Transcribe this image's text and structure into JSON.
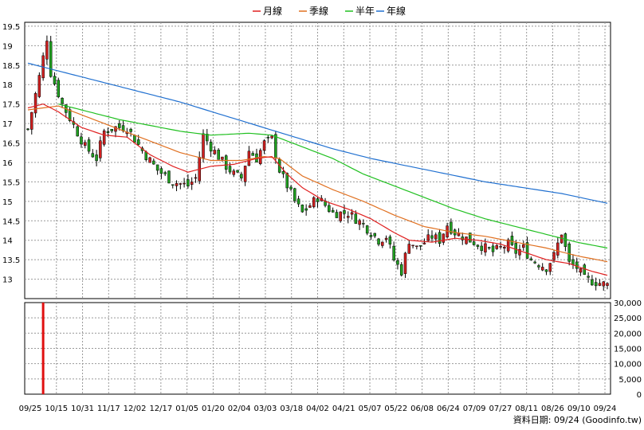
{
  "chart_data": {
    "type": "candlestick",
    "title": "",
    "legend": {
      "placement": "top-center",
      "items": [
        {
          "name": "月線",
          "color": "#e02020"
        },
        {
          "name": "季線",
          "color": "#e07020"
        },
        {
          "name": "半年",
          "color": "#20c020"
        },
        {
          "name": "年線",
          "color": "#2070d0"
        }
      ]
    },
    "x_tick_labels": [
      "09/25",
      "10/15",
      "10/31",
      "11/17",
      "12/02",
      "12/17",
      "01/05",
      "01/20",
      "02/04",
      "03/03",
      "03/18",
      "04/02",
      "04/21",
      "05/07",
      "05/22",
      "06/08",
      "06/24",
      "07/09",
      "07/27",
      "08/11",
      "08/26",
      "09/10",
      "09/24"
    ],
    "price_axis": {
      "ylim": [
        12.5,
        19.6
      ],
      "tick_labels": [
        "19.5",
        "19",
        "18.5",
        "18",
        "17.5",
        "17",
        "16.5",
        "16",
        "15.5",
        "15",
        "14.5",
        "14",
        "13.5",
        "13"
      ],
      "tick_values": [
        19.5,
        19,
        18.5,
        18,
        17.5,
        17,
        16.5,
        16,
        15.5,
        15,
        14.5,
        14,
        13.5,
        13
      ]
    },
    "volume_axis": {
      "ylim": [
        0,
        30000
      ],
      "tick_labels": [
        "30,000",
        "25,000",
        "20,000",
        "15,000",
        "10,000",
        "5,000",
        "0"
      ],
      "tick_values": [
        30000,
        25000,
        20000,
        15000,
        10000,
        5000,
        0
      ]
    },
    "grid": true,
    "anchors": {
      "close": [
        [
          0,
          16.85
        ],
        [
          3,
          18.2
        ],
        [
          5,
          19.2
        ],
        [
          6,
          18.3
        ],
        [
          9,
          17.5
        ],
        [
          12,
          16.95
        ],
        [
          15,
          16.4
        ],
        [
          18,
          16.1
        ],
        [
          20,
          16.8
        ],
        [
          23,
          16.9
        ],
        [
          26,
          16.9
        ],
        [
          30,
          16.3
        ],
        [
          34,
          15.8
        ],
        [
          38,
          15.5
        ],
        [
          42,
          15.4
        ],
        [
          44,
          15.6
        ],
        [
          46,
          16.7
        ],
        [
          48,
          16.4
        ],
        [
          52,
          15.9
        ],
        [
          54,
          15.7
        ],
        [
          56,
          15.6
        ],
        [
          58,
          16.3
        ],
        [
          60,
          16.1
        ],
        [
          62,
          16.5
        ],
        [
          64,
          16.6
        ],
        [
          66,
          15.8
        ],
        [
          70,
          15.0
        ],
        [
          72,
          14.7
        ],
        [
          74,
          14.9
        ],
        [
          76,
          15.1
        ],
        [
          80,
          14.7
        ],
        [
          84,
          14.7
        ],
        [
          88,
          14.4
        ],
        [
          92,
          14.0
        ],
        [
          94,
          14.1
        ],
        [
          96,
          13.5
        ],
        [
          98,
          13.2
        ],
        [
          100,
          14.0
        ],
        [
          102,
          13.8
        ],
        [
          106,
          14.1
        ],
        [
          108,
          14.0
        ],
        [
          110,
          14.4
        ],
        [
          112,
          14.2
        ],
        [
          116,
          14.0
        ],
        [
          118,
          13.9
        ],
        [
          122,
          13.7
        ],
        [
          126,
          13.9
        ],
        [
          128,
          13.7
        ],
        [
          130,
          13.8
        ],
        [
          132,
          13.5
        ],
        [
          134,
          13.4
        ],
        [
          136,
          13.3
        ],
        [
          138,
          13.6
        ],
        [
          140,
          14.2
        ],
        [
          142,
          13.4
        ],
        [
          144,
          13.3
        ],
        [
          146,
          13.0
        ],
        [
          148,
          12.95
        ],
        [
          150,
          12.9
        ],
        [
          152,
          12.85
        ]
      ],
      "ma_month": [
        [
          0,
          17.4
        ],
        [
          4,
          17.5
        ],
        [
          8,
          17.3
        ],
        [
          14,
          16.9
        ],
        [
          20,
          16.7
        ],
        [
          26,
          16.65
        ],
        [
          32,
          16.2
        ],
        [
          38,
          15.9
        ],
        [
          42,
          15.75
        ],
        [
          48,
          15.9
        ],
        [
          54,
          15.95
        ],
        [
          60,
          16.1
        ],
        [
          64,
          16.15
        ],
        [
          68,
          15.7
        ],
        [
          72,
          15.35
        ],
        [
          78,
          15.0
        ],
        [
          84,
          14.8
        ],
        [
          90,
          14.55
        ],
        [
          96,
          14.2
        ],
        [
          100,
          14.0
        ],
        [
          106,
          13.95
        ],
        [
          112,
          14.05
        ],
        [
          118,
          14.0
        ],
        [
          124,
          13.9
        ],
        [
          130,
          13.7
        ],
        [
          136,
          13.5
        ],
        [
          142,
          13.4
        ],
        [
          148,
          13.2
        ],
        [
          152,
          13.1
        ]
      ],
      "ma_quarter": [
        [
          0,
          17.35
        ],
        [
          8,
          17.45
        ],
        [
          16,
          17.15
        ],
        [
          24,
          16.85
        ],
        [
          32,
          16.55
        ],
        [
          40,
          16.25
        ],
        [
          48,
          16.05
        ],
        [
          56,
          16.05
        ],
        [
          62,
          16.15
        ],
        [
          66,
          16.1
        ],
        [
          72,
          15.65
        ],
        [
          80,
          15.3
        ],
        [
          88,
          15.0
        ],
        [
          96,
          14.65
        ],
        [
          104,
          14.35
        ],
        [
          112,
          14.2
        ],
        [
          120,
          14.1
        ],
        [
          128,
          13.95
        ],
        [
          136,
          13.8
        ],
        [
          144,
          13.6
        ],
        [
          152,
          13.45
        ]
      ],
      "ma_half": [
        [
          8,
          17.5
        ],
        [
          16,
          17.3
        ],
        [
          24,
          17.1
        ],
        [
          32,
          16.95
        ],
        [
          40,
          16.8
        ],
        [
          48,
          16.7
        ],
        [
          58,
          16.75
        ],
        [
          64,
          16.7
        ],
        [
          72,
          16.4
        ],
        [
          80,
          16.1
        ],
        [
          88,
          15.7
        ],
        [
          96,
          15.4
        ],
        [
          104,
          15.1
        ],
        [
          112,
          14.8
        ],
        [
          120,
          14.55
        ],
        [
          128,
          14.35
        ],
        [
          136,
          14.15
        ],
        [
          144,
          13.95
        ],
        [
          152,
          13.8
        ]
      ],
      "ma_year": [
        [
          0,
          18.55
        ],
        [
          10,
          18.3
        ],
        [
          20,
          18.05
        ],
        [
          30,
          17.8
        ],
        [
          40,
          17.55
        ],
        [
          50,
          17.25
        ],
        [
          60,
          16.95
        ],
        [
          70,
          16.65
        ],
        [
          80,
          16.35
        ],
        [
          90,
          16.1
        ],
        [
          100,
          15.9
        ],
        [
          110,
          15.7
        ],
        [
          120,
          15.5
        ],
        [
          130,
          15.35
        ],
        [
          140,
          15.2
        ],
        [
          152,
          14.95
        ]
      ]
    },
    "volume": [
      {
        "day": 4,
        "value": 30000
      }
    ],
    "num_days": 153,
    "source_text": "資料日期: 09/24 (Goodinfo.tw)"
  }
}
